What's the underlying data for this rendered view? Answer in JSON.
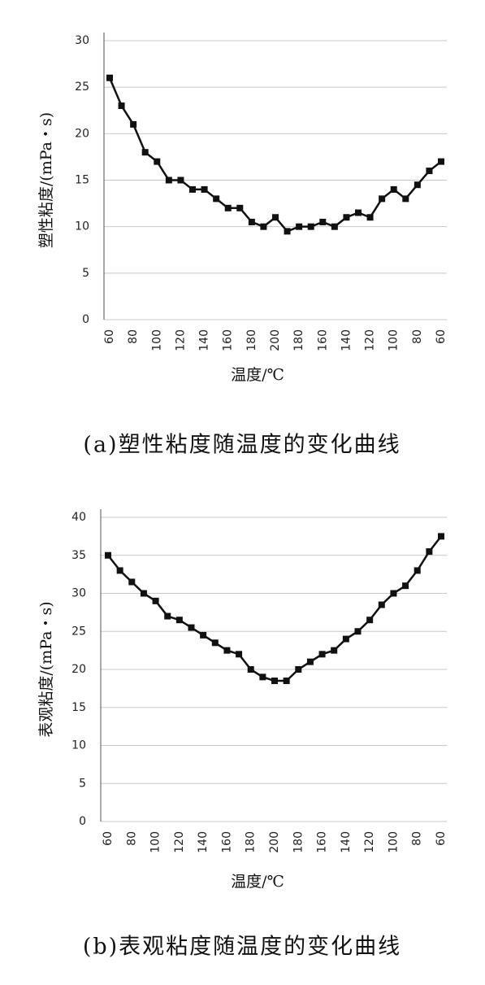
{
  "chart_data": [
    {
      "type": "line",
      "caption": "(a)塑性粘度随温度的变化曲线",
      "x_label": "温度/℃",
      "y_label": "塑性粘度/(mPa・s)",
      "categories": [
        "60",
        null,
        "80",
        null,
        "100",
        null,
        "120",
        null,
        "140",
        null,
        "160",
        null,
        "180",
        null,
        "200",
        null,
        "180",
        null,
        "160",
        null,
        "140",
        null,
        "120",
        null,
        "100",
        null,
        "80",
        null,
        "60"
      ],
      "series": [
        {
          "color": "#111111",
          "values": [
            26,
            23,
            21,
            18,
            17,
            15,
            15,
            14,
            14,
            13,
            12,
            12,
            10.5,
            10,
            11,
            9.5,
            10,
            10,
            10.5,
            10,
            11,
            11.5,
            11,
            13,
            14,
            13,
            14.5,
            16,
            17
          ]
        }
      ],
      "ylim": [
        0,
        30
      ],
      "yticks": [
        0,
        5,
        10,
        15,
        20,
        25,
        30
      ],
      "grid": true
    },
    {
      "type": "line",
      "caption": "(b)表观粘度随温度的变化曲线",
      "x_label": "温度/℃",
      "y_label": "表观粘度/(mPa・s)",
      "categories": [
        "60",
        null,
        "80",
        null,
        "100",
        null,
        "120",
        null,
        "140",
        null,
        "160",
        null,
        "180",
        null,
        "200",
        null,
        "180",
        null,
        "160",
        null,
        "140",
        null,
        "120",
        null,
        "100",
        null,
        "80",
        null,
        "60"
      ],
      "series": [
        {
          "color": "#111111",
          "values": [
            35,
            33,
            31.5,
            30,
            29,
            27,
            26.5,
            25.5,
            24.5,
            23.5,
            22.5,
            22,
            20,
            19,
            18.5,
            18.5,
            20,
            21,
            22,
            22.5,
            24,
            25,
            26.5,
            28.5,
            30,
            31,
            33,
            35.5,
            37.5
          ]
        }
      ],
      "ylim": [
        0,
        40
      ],
      "yticks": [
        0,
        5,
        10,
        15,
        20,
        25,
        30,
        35,
        40
      ],
      "grid": true
    }
  ]
}
